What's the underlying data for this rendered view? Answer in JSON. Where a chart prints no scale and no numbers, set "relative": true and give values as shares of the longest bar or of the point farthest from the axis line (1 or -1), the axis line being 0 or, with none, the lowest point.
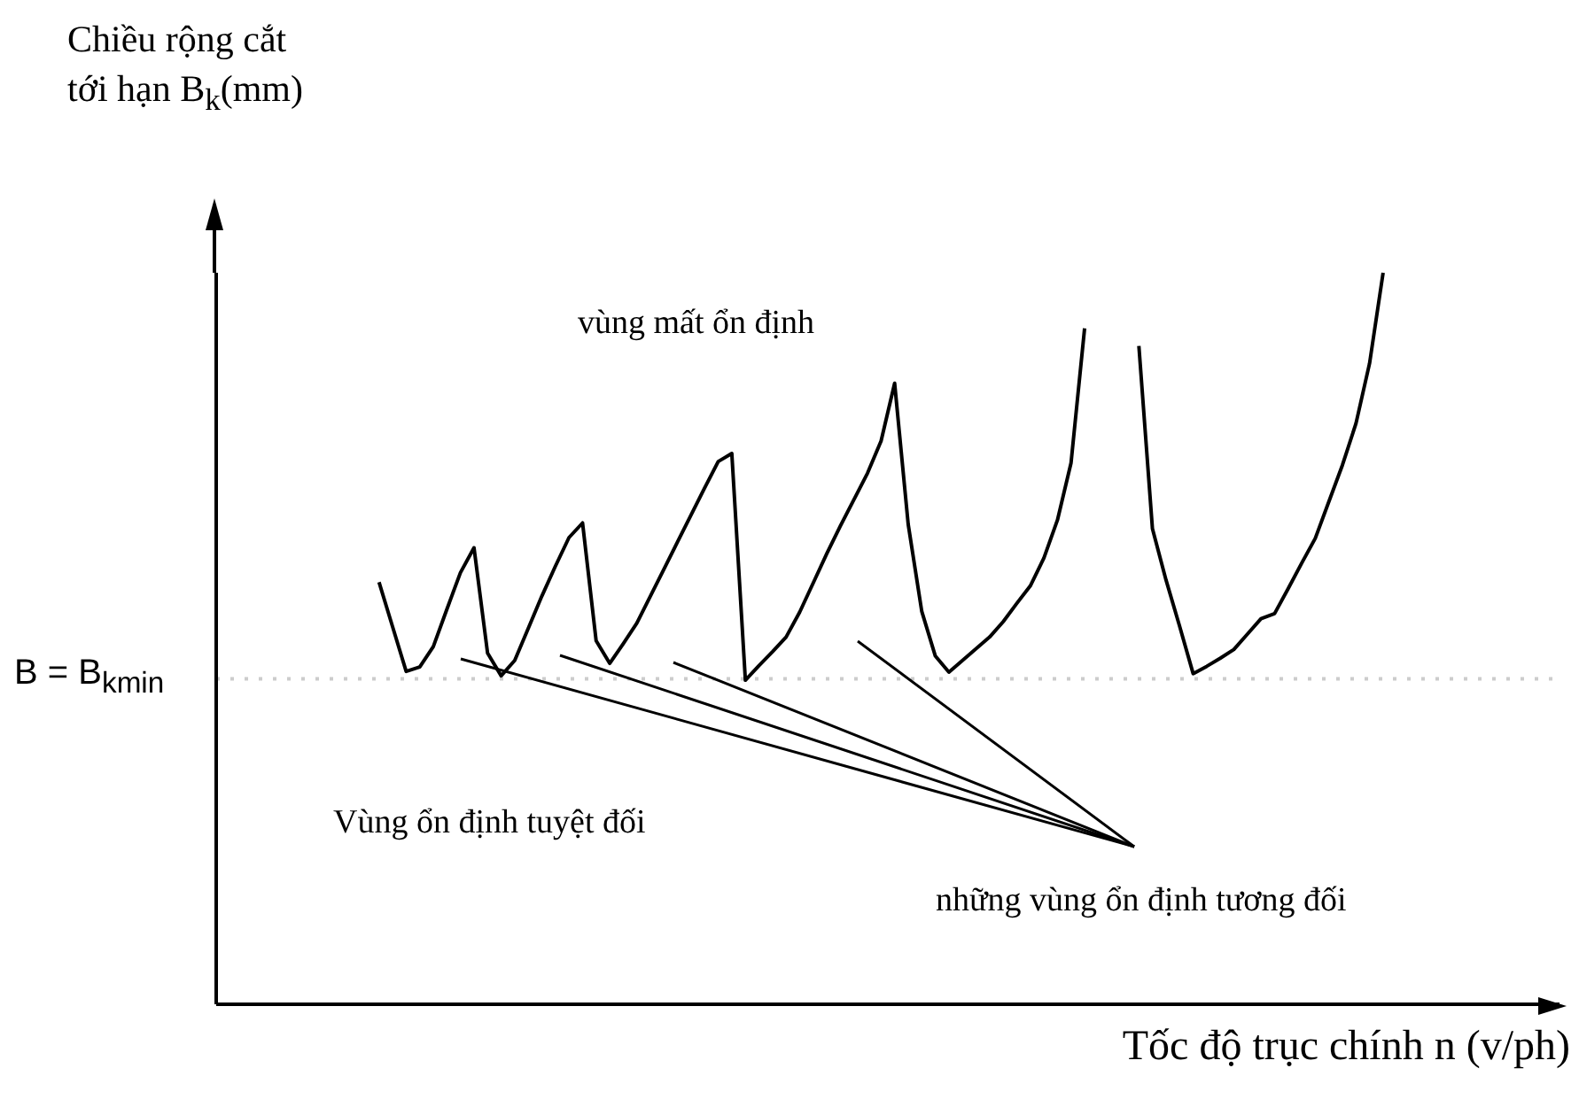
{
  "chart_data": {
    "type": "line",
    "relative": true,
    "ylabel": "Chiều rộng cắt\ntới hạn B$_{k}$(mm)",
    "xlabel": "Tốc độ trục chính n (v/ph)",
    "categories": [
      null,
      null,
      null,
      null,
      null,
      null,
      null,
      null,
      null,
      null,
      null,
      null,
      null,
      null,
      null,
      null,
      null,
      null,
      null,
      null,
      null,
      null,
      null,
      null,
      null,
      null,
      null,
      null,
      null,
      null,
      null,
      null,
      null,
      null,
      null,
      null,
      null,
      null,
      null,
      null,
      null,
      null,
      null,
      null,
      null,
      null,
      null,
      null,
      null,
      null,
      null,
      null,
      null,
      null,
      null,
      null,
      null,
      null,
      null,
      null,
      null,
      null,
      null,
      null,
      null,
      null,
      null,
      null,
      null,
      null,
      null,
      null,
      null,
      null,
      null,
      null,
      null,
      null,
      null,
      null,
      null,
      null,
      null,
      null,
      null,
      null,
      null,
      null,
      null,
      null,
      null,
      null,
      null,
      null,
      null,
      null,
      null,
      null,
      null,
      null
    ],
    "series": [
      {
        "color": "#000000",
        "values": [
          null,
          null,
          null,
          null,
          null,
          null,
          null,
          null,
          null,
          null,
          null,
          null,
          0.577,
          0.516,
          0.455,
          0.461,
          0.489,
          0.54,
          0.59,
          0.624,
          0.48,
          0.449,
          0.47,
          0.514,
          0.558,
          0.599,
          0.638,
          0.658,
          0.497,
          0.466,
          0.493,
          0.521,
          0.558,
          0.595,
          0.632,
          0.669,
          0.706,
          0.742,
          0.753,
          0.443,
          0.463,
          0.482,
          0.502,
          0.536,
          0.576,
          0.616,
          0.654,
          0.69,
          0.726,
          0.77,
          0.849,
          0.656,
          0.537,
          0.476,
          0.454,
          0.47,
          0.486,
          0.502,
          0.523,
          0.548,
          0.572,
          0.61,
          0.662,
          0.74,
          0.924,
          null,
          null,
          null,
          null,
          null,
          null,
          null,
          null,
          null,
          null,
          null,
          null,
          null,
          null,
          null,
          null,
          null,
          null,
          null,
          null,
          null,
          null,
          null,
          null,
          null,
          null,
          null,
          null,
          null,
          null,
          null,
          null,
          null,
          null,
          null
        ]
      },
      {
        "color": "#000000",
        "values": [
          null,
          null,
          null,
          null,
          null,
          null,
          null,
          null,
          null,
          null,
          null,
          null,
          null,
          null,
          null,
          null,
          null,
          null,
          null,
          null,
          null,
          null,
          null,
          null,
          null,
          null,
          null,
          null,
          null,
          null,
          null,
          null,
          null,
          null,
          null,
          null,
          null,
          null,
          null,
          null,
          null,
          null,
          null,
          null,
          null,
          null,
          null,
          null,
          null,
          null,
          null,
          null,
          null,
          null,
          null,
          null,
          null,
          null,
          null,
          null,
          null,
          null,
          null,
          null,
          null,
          null,
          null,
          null,
          0.9,
          0.65,
          0.58,
          0.517,
          0.452,
          0.462,
          0.473,
          0.485,
          0.506,
          0.527,
          0.534,
          0.568,
          0.603,
          0.637,
          0.687,
          0.737,
          0.794,
          0.876,
          1.0,
          null,
          null,
          null,
          null,
          null,
          null,
          null,
          null,
          null,
          null,
          null,
          null,
          null
        ]
      }
    ],
    "ref_lines": [
      {
        "axis": "y",
        "value": 0.445,
        "label": "B = B$_{kmin}$",
        "color": "#cccccc",
        "line_style": "dotted"
      }
    ],
    "annotations": [
      "vùng mất ổn định",
      "Vùng ổn định tuyệt đối",
      "những vùng ổn định tương đối"
    ]
  }
}
